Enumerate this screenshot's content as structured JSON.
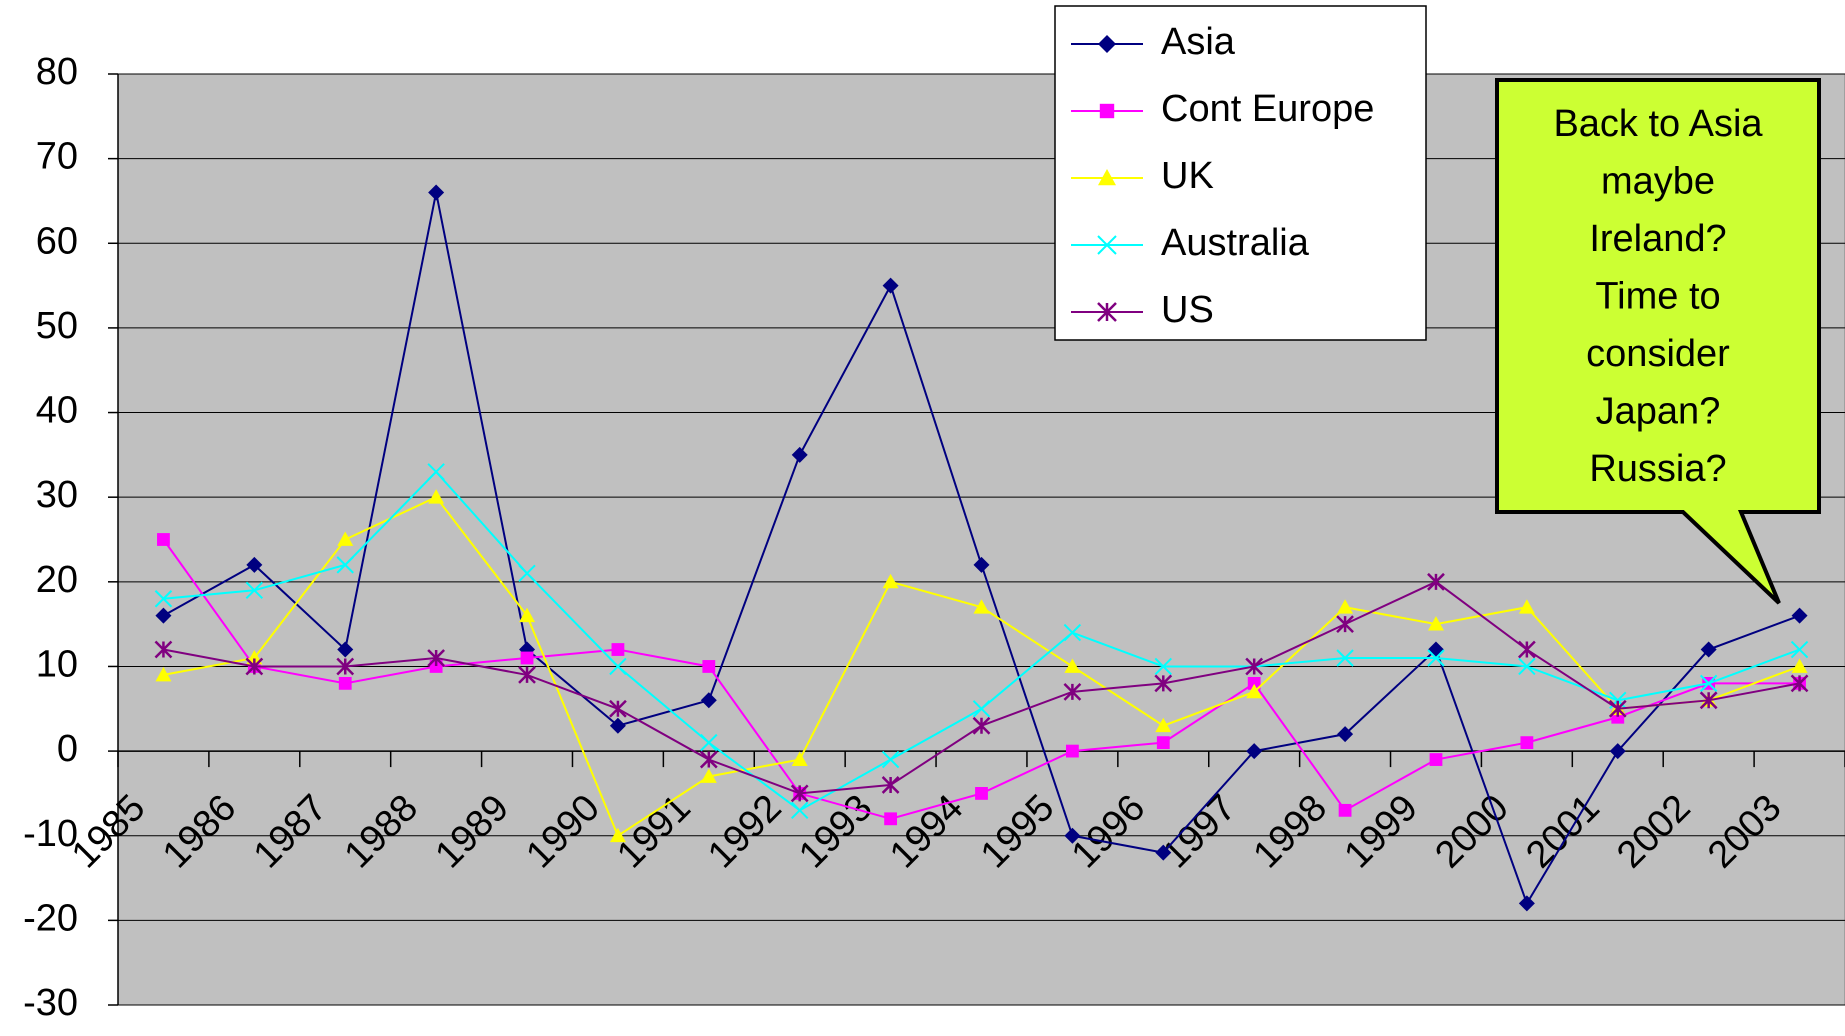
{
  "chart_data": {
    "type": "line",
    "categories": [
      "1985",
      "1986",
      "1987",
      "1988",
      "1989",
      "1990",
      "1991",
      "1992",
      "1993",
      "1994",
      "1995",
      "1996",
      "1997",
      "1998",
      "1999",
      "2000",
      "2001",
      "2002",
      "2003"
    ],
    "series": [
      {
        "name": "Asia",
        "color": "#000080",
        "marker": "diamond",
        "values": [
          16,
          22,
          12,
          66,
          12,
          3,
          6,
          35,
          55,
          22,
          -10,
          -12,
          0,
          2,
          12,
          -18,
          0,
          12,
          16
        ]
      },
      {
        "name": "Cont Europe",
        "color": "#ff00ff",
        "marker": "square",
        "values": [
          25,
          10,
          8,
          10,
          11,
          12,
          10,
          -5,
          -8,
          -5,
          0,
          1,
          8,
          -7,
          -1,
          1,
          4,
          8,
          8
        ]
      },
      {
        "name": "UK",
        "color": "#ffff00",
        "marker": "triangle",
        "values": [
          9,
          11,
          25,
          30,
          16,
          -10,
          -3,
          -1,
          20,
          17,
          10,
          3,
          7,
          17,
          15,
          17,
          5,
          6,
          10
        ]
      },
      {
        "name": "Australia",
        "color": "#00ffff",
        "marker": "x",
        "values": [
          18,
          19,
          22,
          33,
          21,
          10,
          1,
          -7,
          -1,
          5,
          14,
          10,
          10,
          11,
          11,
          10,
          6,
          8,
          12
        ]
      },
      {
        "name": "US",
        "color": "#800080",
        "marker": "star",
        "values": [
          12,
          10,
          10,
          11,
          9,
          5,
          -1,
          -5,
          -4,
          3,
          7,
          8,
          10,
          15,
          20,
          12,
          5,
          6,
          8
        ]
      }
    ],
    "ylim": [
      -30,
      80
    ],
    "yticks": [
      -30,
      -20,
      -10,
      0,
      10,
      20,
      30,
      40,
      50,
      60,
      70,
      80
    ],
    "grid": true,
    "legend": "top-right",
    "annotation": [
      "Back to Asia",
      "maybe",
      "Ireland?",
      "Time to",
      "consider",
      "Japan?",
      "Russia?"
    ]
  }
}
